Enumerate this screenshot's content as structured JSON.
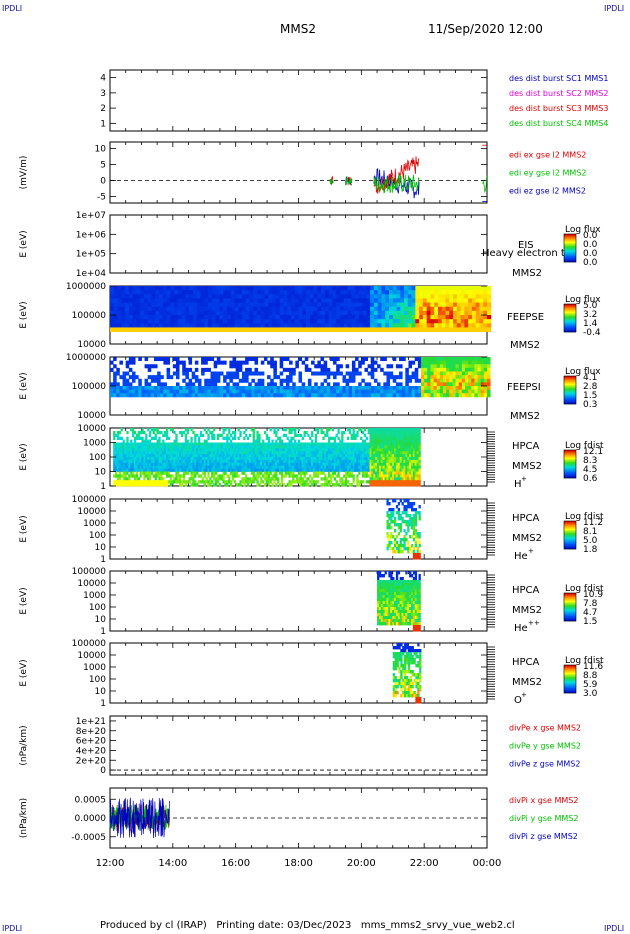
{
  "corner_labels": {
    "tl": "IPDLI",
    "tr": "IPDLI",
    "bl": "IPDLI",
    "br": "IPDLI"
  },
  "header": {
    "spacecraft": "MMS2",
    "datetime": "11/Sep/2020 12:00"
  },
  "footer": {
    "text": "Produced by cl (IRAP)   Printing date: 03/Dec/2023   mms_mms2_srvy_vue_web2.cl"
  },
  "chart_data": [
    {
      "type": "line",
      "id": "panel1",
      "ylim": [
        0.5,
        4.5
      ],
      "yticks": [
        "1",
        "2",
        "3",
        "4"
      ],
      "ylabel": "",
      "legend": [
        {
          "text": "des dist burst SC1 MMS1",
          "color": "#0000c0"
        },
        {
          "text": "des dist burst SC2 MMS2",
          "color": "#e000e0"
        },
        {
          "text": "des dist burst SC3 MMS3",
          "color": "#e00000"
        },
        {
          "text": "des dist burst SC4 MMS4",
          "color": "#00c000"
        }
      ]
    },
    {
      "type": "line",
      "id": "panel2",
      "ylim": [
        -7,
        12
      ],
      "yticks": [
        "-5",
        "0",
        "5",
        "10"
      ],
      "ylabel": "(mV/m)",
      "legend": [
        {
          "text": "edi ex gse l2 MMS2",
          "color": "#e00000"
        },
        {
          "text": "edi ey gse l2 MMS2",
          "color": "#00c000"
        },
        {
          "text": "edi ez gse l2 MMS2",
          "color": "#0000c0"
        }
      ]
    },
    {
      "type": "heatmap",
      "id": "panel3",
      "yticks": [
        "1e+07",
        "1e+06",
        "1e+05",
        "1e+04"
      ],
      "ylabel": "E (eV)",
      "labels": [
        "EIS",
        "MMS2"
      ],
      "overlay": "Heavy electron to",
      "cbar_title": "Log flux",
      "cbar_ticks": [
        "0.0",
        "0.0",
        "0.0",
        "0.0"
      ]
    },
    {
      "type": "heatmap",
      "id": "panel4",
      "yticks": [
        "1000000",
        "100000",
        "10000"
      ],
      "ylabel": "E (eV)",
      "labels": [
        "FEEPSE",
        "MMS2"
      ],
      "cbar_title": "Log flux",
      "cbar_ticks": [
        "5.0",
        "3.2",
        "1.4",
        "-0.4"
      ]
    },
    {
      "type": "heatmap",
      "id": "panel5",
      "yticks": [
        "1000000",
        "100000",
        "10000"
      ],
      "ylabel": "E (eV)",
      "labels": [
        "FEEPSI",
        "MMS2"
      ],
      "cbar_title": "Log flux",
      "cbar_ticks": [
        "4.1",
        "2.8",
        "1.5",
        "0.3"
      ]
    },
    {
      "type": "heatmap",
      "id": "panel6",
      "yticks": [
        "10000",
        "1000",
        "100",
        "10",
        "1"
      ],
      "ylabel": "E (eV)",
      "labels": [
        "HPCA",
        "MMS2"
      ],
      "species": "H",
      "species_sup": "+",
      "cbar_title": "Log fdist",
      "cbar_ticks": [
        "12.1",
        "8.3",
        "4.5",
        "0.6"
      ]
    },
    {
      "type": "heatmap",
      "id": "panel7",
      "yticks": [
        "100000",
        "10000",
        "1000",
        "100",
        "10",
        "1"
      ],
      "ylabel": "E (eV)",
      "labels": [
        "HPCA",
        "MMS2"
      ],
      "species": "He",
      "species_sup": "+",
      "cbar_title": "Log fdist",
      "cbar_ticks": [
        "11.2",
        "8.1",
        "5.0",
        "1.8"
      ]
    },
    {
      "type": "heatmap",
      "id": "panel8",
      "yticks": [
        "100000",
        "10000",
        "1000",
        "100",
        "10",
        "1"
      ],
      "ylabel": "E (eV)",
      "labels": [
        "HPCA",
        "MMS2"
      ],
      "species": "He",
      "species_sup": "++",
      "cbar_title": "Log fdist",
      "cbar_ticks": [
        "10.9",
        "7.8",
        "4.7",
        "1.5"
      ]
    },
    {
      "type": "heatmap",
      "id": "panel9",
      "yticks": [
        "100000",
        "10000",
        "1000",
        "100",
        "10",
        "1"
      ],
      "ylabel": "E (eV)",
      "labels": [
        "HPCA",
        "MMS2"
      ],
      "species": "O",
      "species_sup": "+",
      "cbar_title": "Log fdist",
      "cbar_ticks": [
        "11.6",
        "8.8",
        "5.9",
        "3.0"
      ]
    },
    {
      "type": "line",
      "id": "panel10",
      "ylim": [
        -1e+20,
        1.1e+21
      ],
      "yticks": [
        "1e+21",
        "8e+20",
        "6e+20",
        "4e+20",
        "2e+20",
        "0"
      ],
      "ylabel": "(nPa/km)",
      "legend": [
        {
          "text": "divPe x gse MMS2",
          "color": "#e00000"
        },
        {
          "text": "divPe y gse MMS2",
          "color": "#00c000"
        },
        {
          "text": "divPe z gse MMS2",
          "color": "#0000c0"
        }
      ]
    },
    {
      "type": "line",
      "id": "panel11",
      "ylim": [
        -0.0008,
        0.0008
      ],
      "yticks": [
        "0.0005",
        "0.0000",
        "-0.0005"
      ],
      "ylabel": "(nPa/km)",
      "legend": [
        {
          "text": "divPi x gse MMS2",
          "color": "#e00000"
        },
        {
          "text": "divPi y gse MMS2",
          "color": "#00c000"
        },
        {
          "text": "divPi z gse MMS2",
          "color": "#0000c0"
        }
      ]
    }
  ],
  "xaxis": {
    "ticks": [
      "12:00",
      "14:00",
      "16:00",
      "18:00",
      "20:00",
      "22:00",
      "00:00"
    ]
  }
}
